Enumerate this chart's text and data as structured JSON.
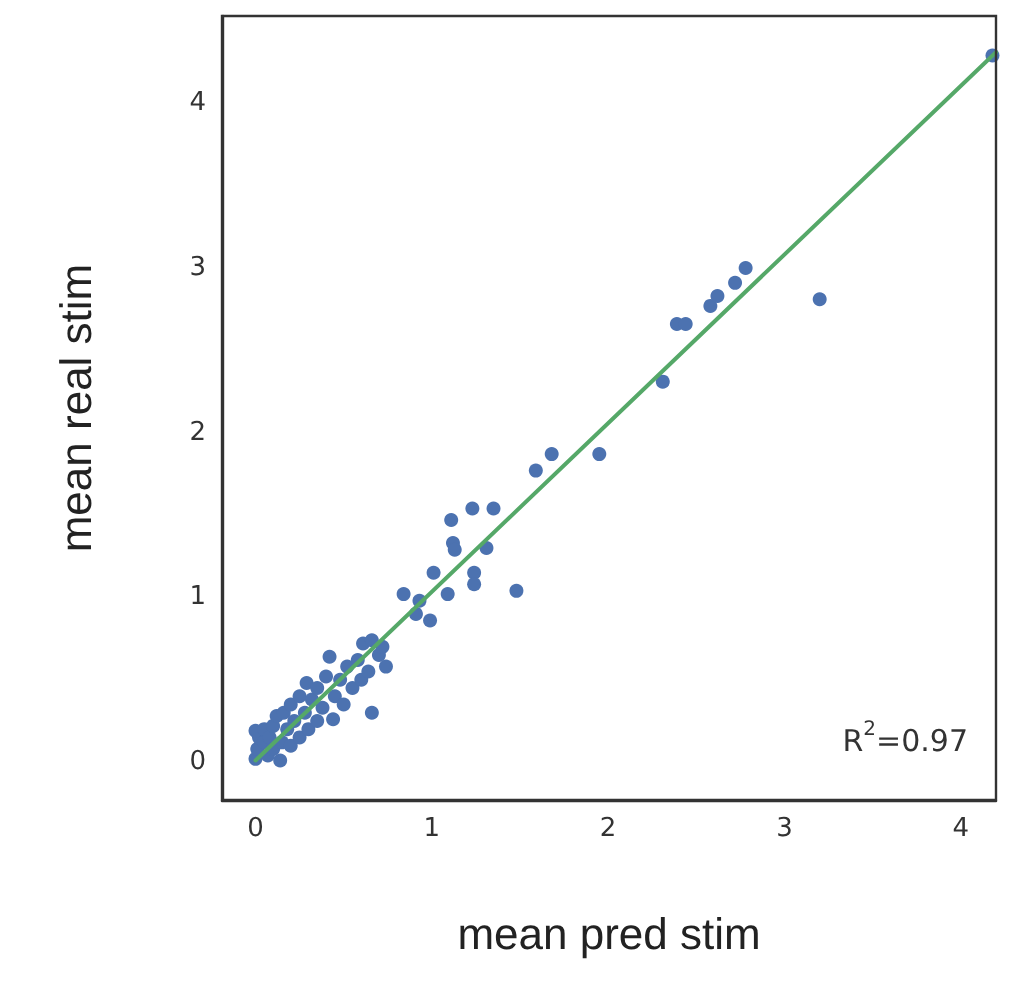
{
  "chart_data": {
    "type": "scatter",
    "xlabel": "mean pred stim",
    "ylabel": "mean real stim",
    "annotations": [
      "R$^{2}$=0.97"
    ],
    "xlim": [
      -0.19,
      4.2
    ],
    "ylim": [
      -0.23,
      4.53
    ],
    "xticks": [
      0,
      1,
      2,
      3,
      4
    ],
    "yticks": [
      0,
      1,
      2,
      3,
      4
    ],
    "grid": false,
    "marker": "circle",
    "series": [
      {
        "color": "#4c72b0",
        "x": [
          0,
          0.01,
          0.02,
          0,
          0.05,
          0.05,
          0.07,
          0.08,
          0.1,
          0.1,
          0.12,
          0.14,
          0.15,
          0.16,
          0.18,
          0.2,
          0.2,
          0.22,
          0.25,
          0.25,
          0.28,
          0.29,
          0.3,
          0.32,
          0.35,
          0.35,
          0.38,
          0.4,
          0.42,
          0.44,
          0.45,
          0.48,
          0.5,
          0.52,
          0.55,
          0.58,
          0.6,
          0.64,
          0.7,
          0.74,
          0.72,
          0.61,
          0.66,
          0.66,
          0.84,
          0.91,
          0.93,
          0.99,
          1.01,
          1.09,
          1.24,
          1.24,
          1.48,
          1.31,
          1.12,
          1.13,
          1.11,
          1.23,
          1.35,
          1.59,
          1.68,
          1.95,
          2.31,
          2.39,
          2.44,
          2.58,
          2.62,
          2.72,
          2.78,
          3.2,
          4.18
        ],
        "values": [
          0.02,
          0.08,
          0.15,
          0.19,
          0.12,
          0.2,
          0.04,
          0.15,
          0.22,
          0.08,
          0.28,
          0.01,
          0.12,
          0.3,
          0.2,
          0.35,
          0.1,
          0.25,
          0.4,
          0.15,
          0.3,
          0.48,
          0.2,
          0.38,
          0.45,
          0.25,
          0.33,
          0.52,
          0.64,
          0.26,
          0.4,
          0.5,
          0.35,
          0.58,
          0.45,
          0.62,
          0.5,
          0.55,
          0.65,
          0.58,
          0.7,
          0.72,
          0.74,
          0.3,
          1.02,
          0.9,
          0.98,
          0.86,
          1.15,
          1.02,
          1.15,
          1.08,
          1.04,
          1.3,
          1.33,
          1.29,
          1.47,
          1.54,
          1.54,
          1.77,
          1.87,
          1.87,
          2.31,
          2.66,
          2.66,
          2.77,
          2.83,
          2.91,
          3.0,
          2.81,
          4.29
        ]
      },
      {
        "type": "line",
        "color": "#55a868",
        "marker": "none",
        "x": [
          0,
          4.2
        ],
        "values": [
          0.01,
          4.31
        ]
      }
    ]
  }
}
